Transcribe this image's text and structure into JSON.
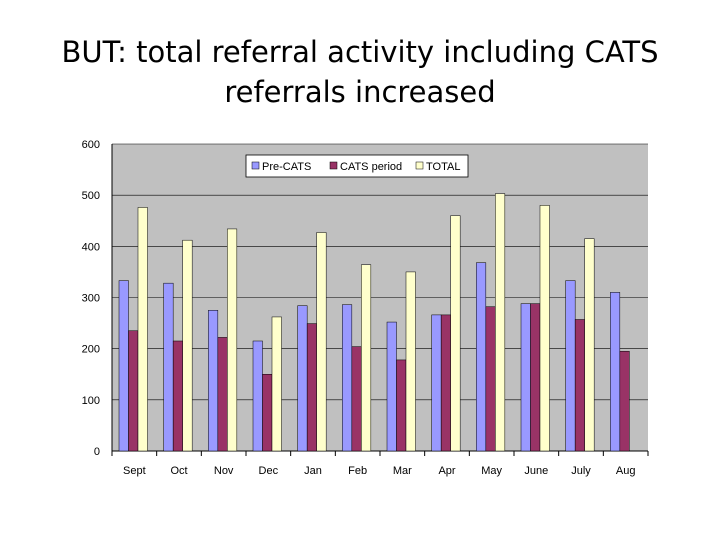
{
  "slide": {
    "title_line1": "BUT: total referral activity including CATS",
    "title_line2": "referrals increased"
  },
  "colors": {
    "plot_background": "#C0C0C0",
    "gridline": "#000000"
  },
  "chart_data": {
    "type": "bar",
    "categories": [
      "Sept",
      "Oct",
      "Nov",
      "Dec",
      "Jan",
      "Feb",
      "Mar",
      "Apr",
      "May",
      "June",
      "July",
      "Aug"
    ],
    "series": [
      {
        "name": "Pre-CATS",
        "color": "#9999FF",
        "values": [
          333,
          328,
          275,
          215,
          284,
          286,
          252,
          266,
          368,
          288,
          333,
          310
        ]
      },
      {
        "name": "CATS period",
        "color": "#993366",
        "values": [
          235,
          215,
          222,
          150,
          249,
          204,
          178,
          266,
          282,
          288,
          257,
          195
        ]
      },
      {
        "name": "TOTAL",
        "color": "#FFFFCC",
        "values": [
          476,
          412,
          434,
          262,
          427,
          364,
          350,
          460,
          503,
          480,
          415,
          null
        ]
      }
    ],
    "yticks": [
      0,
      100,
      200,
      300,
      400,
      500,
      600
    ],
    "ylim": [
      0,
      600
    ],
    "grid": true,
    "legend_position": "top-center"
  }
}
